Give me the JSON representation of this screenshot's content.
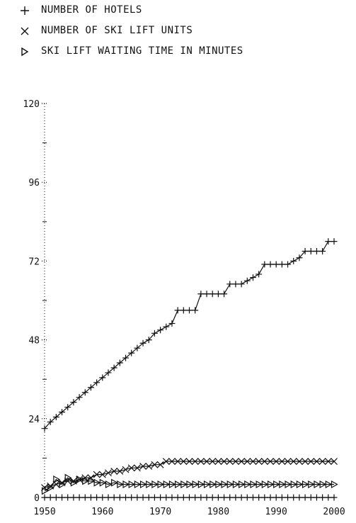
{
  "chart_data": {
    "type": "line",
    "xlim": [
      1950,
      2000
    ],
    "ylim": [
      0,
      120
    ],
    "xticks": [
      "1950",
      "1960",
      "1970",
      "1980",
      "1990",
      "2000"
    ],
    "yticks": [
      "0",
      "24",
      "48",
      "72",
      "96",
      "120"
    ],
    "grid": false,
    "legend_placement": "top-left",
    "colors": {
      "ink": "#111111"
    },
    "series": [
      {
        "name": "NUMBER OF HOTELS",
        "marker": "plus",
        "x": [
          1950,
          1951,
          1952,
          1953,
          1954,
          1955,
          1956,
          1957,
          1958,
          1959,
          1960,
          1961,
          1962,
          1963,
          1964,
          1965,
          1966,
          1967,
          1968,
          1969,
          1970,
          1971,
          1972,
          1973,
          1974,
          1975,
          1976,
          1977,
          1978,
          1979,
          1980,
          1981,
          1982,
          1983,
          1984,
          1985,
          1986,
          1987,
          1988,
          1989,
          1990,
          1991,
          1992,
          1993,
          1994,
          1995,
          1996,
          1997,
          1998,
          1999,
          2000
        ],
        "y": [
          21,
          23,
          24.5,
          26,
          27.5,
          29,
          30.5,
          32,
          33.5,
          35,
          36.5,
          38,
          39.5,
          41,
          42.5,
          44,
          45.5,
          47,
          48,
          50,
          51,
          52,
          53,
          57,
          57,
          57,
          57,
          62,
          62,
          62,
          62,
          62,
          65,
          65,
          65,
          66,
          67,
          68,
          71,
          71,
          71,
          71,
          71,
          72,
          73,
          75,
          75,
          75,
          75,
          78,
          78
        ]
      },
      {
        "name": "NUMBER OF SKI LIFT UNITS",
        "marker": "x",
        "x": [
          1950,
          1951,
          1952,
          1953,
          1954,
          1955,
          1956,
          1957,
          1958,
          1959,
          1960,
          1961,
          1962,
          1963,
          1964,
          1965,
          1966,
          1967,
          1968,
          1969,
          1970,
          1971,
          1972,
          1973,
          1974,
          1975,
          1976,
          1977,
          1978,
          1979,
          1980,
          1981,
          1982,
          1983,
          1984,
          1985,
          1986,
          1987,
          1988,
          1989,
          1990,
          1991,
          1992,
          1993,
          1994,
          1995,
          1996,
          1997,
          1998,
          1999,
          2000
        ],
        "y": [
          3,
          3.5,
          4,
          4.5,
          5,
          5,
          5.5,
          6,
          6,
          7,
          7,
          7.5,
          8,
          8,
          8.5,
          9,
          9,
          9.5,
          9.5,
          10,
          10,
          11,
          11,
          11,
          11,
          11,
          11,
          11,
          11,
          11,
          11,
          11,
          11,
          11,
          11,
          11,
          11,
          11,
          11,
          11,
          11,
          11,
          11,
          11,
          11,
          11,
          11,
          11,
          11,
          11,
          11
        ]
      },
      {
        "name": "SKI LIFT WAITING TIME IN MINUTES",
        "marker": "triangle-right",
        "x": [
          1950,
          1951,
          1952,
          1953,
          1954,
          1955,
          1956,
          1957,
          1958,
          1959,
          1960,
          1961,
          1962,
          1963,
          1964,
          1965,
          1966,
          1967,
          1968,
          1969,
          1970,
          1971,
          1972,
          1973,
          1974,
          1975,
          1976,
          1977,
          1978,
          1979,
          1980,
          1981,
          1982,
          1983,
          1984,
          1985,
          1986,
          1987,
          1988,
          1989,
          1990,
          1991,
          1992,
          1993,
          1994,
          1995,
          1996,
          1997,
          1998,
          1999,
          2000
        ],
        "y": [
          2,
          3,
          5.5,
          4,
          6,
          4.5,
          5.5,
          5,
          5,
          4.5,
          4.5,
          4,
          4.5,
          4,
          4,
          4,
          4,
          4,
          4,
          4,
          4,
          4,
          4,
          4,
          4,
          4,
          4,
          4,
          4,
          4,
          4,
          4,
          4,
          4,
          4,
          4,
          4,
          4,
          4,
          4,
          4,
          4,
          4,
          4,
          4,
          4,
          4,
          4,
          4,
          4,
          4
        ]
      },
      {
        "name": "",
        "marker": "plus",
        "x": [
          1950,
          1951,
          1952,
          1953,
          1954,
          1955,
          1956,
          1957,
          1958,
          1959,
          1960,
          1961,
          1962,
          1963,
          1964,
          1965,
          1966,
          1967,
          1968,
          1969,
          1970,
          1971,
          1972,
          1973,
          1974,
          1975,
          1976,
          1977,
          1978,
          1979,
          1980,
          1981,
          1982,
          1983,
          1984,
          1985,
          1986,
          1987,
          1988,
          1989,
          1990,
          1991,
          1992,
          1993,
          1994,
          1995,
          1996,
          1997,
          1998,
          1999,
          2000
        ],
        "y": [
          0,
          0,
          0,
          0,
          0,
          0,
          0,
          0,
          0,
          0,
          0,
          0,
          0,
          0,
          0,
          0,
          0,
          0,
          0,
          0,
          0,
          0,
          0,
          0,
          0,
          0,
          0,
          0,
          0,
          0,
          0,
          0,
          0,
          0,
          0,
          0,
          0,
          0,
          0,
          0,
          0,
          0,
          0,
          0,
          0,
          0,
          0,
          0,
          0,
          0,
          0
        ]
      }
    ]
  }
}
